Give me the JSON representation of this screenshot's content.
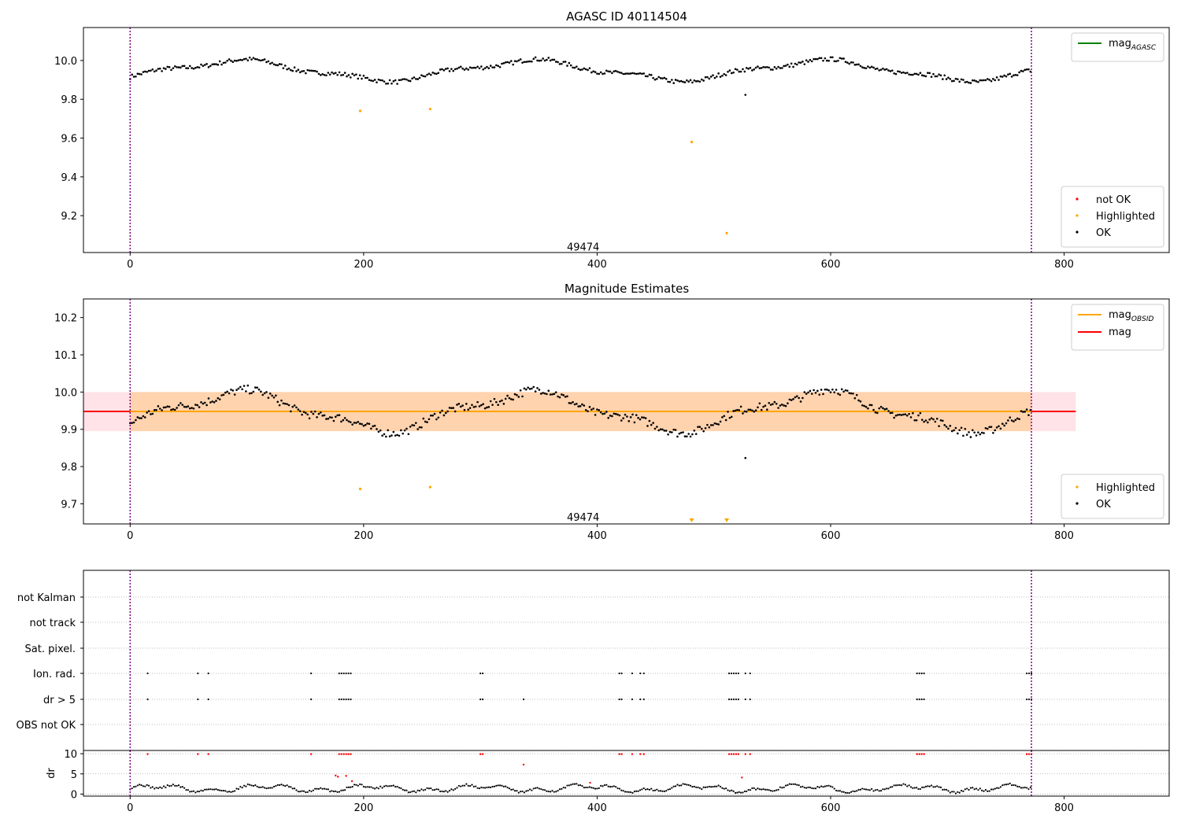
{
  "figure": {
    "chart_data": [
      {
        "type": "scatter",
        "title": "AGASC ID 40114504",
        "xlim": [
          -40,
          890
        ],
        "ylim": [
          9.01,
          10.17
        ],
        "x_ticks": [
          0,
          200,
          400,
          600,
          800
        ],
        "y_ticks": [
          9.2,
          9.4,
          9.6,
          9.8,
          10.0
        ],
        "obs_boundaries": [
          0,
          772
        ],
        "obs_label": {
          "x": 388,
          "y": 9.04,
          "text": "49474"
        },
        "lines": [],
        "series": [
          {
            "name": "not OK",
            "color": "#ff0000",
            "points": []
          },
          {
            "name": "Highlighted",
            "color": "#ffa500",
            "points": [
              [
                197,
                9.74
              ],
              [
                257,
                9.75
              ],
              [
                481,
                9.58
              ],
              [
                511,
                9.11
              ]
            ]
          },
          {
            "name": "OK",
            "color": "#000000",
            "curve": "mag",
            "from": 0,
            "to": 772,
            "step": 1.6
          }
        ],
        "legend_lines": [
          {
            "label": "mag",
            "sub": "AGASC",
            "color": "#008000"
          }
        ],
        "legend_points": [
          {
            "label": "not OK",
            "color": "#ff0000"
          },
          {
            "label": "Highlighted",
            "color": "#ffa500"
          },
          {
            "label": "OK",
            "color": "#000000"
          }
        ]
      },
      {
        "type": "scatter",
        "title": "Magnitude Estimates",
        "xlim": [
          -40,
          890
        ],
        "ylim": [
          9.646,
          10.25
        ],
        "x_ticks": [
          0,
          200,
          400,
          600,
          800
        ],
        "y_ticks": [
          9.7,
          9.8,
          9.9,
          10.0,
          10.1,
          10.2
        ],
        "obs_boundaries": [
          0,
          772
        ],
        "obs_label": {
          "x": 388,
          "y": 9.665,
          "text": "49474"
        },
        "bands": [
          {
            "x": [
              -40,
              810
            ],
            "y": [
              9.895,
              10.0
            ],
            "color": "#ffc0cb",
            "opacity": 0.45
          },
          {
            "x": [
              0,
              772
            ],
            "y": [
              9.895,
              10.0
            ],
            "color": "#ffa500",
            "opacity": 0.25
          }
        ],
        "lines": [
          {
            "name": "mag",
            "x": [
              -40,
              810
            ],
            "y": 9.948,
            "color": "#ff0000",
            "width": 2
          },
          {
            "name": "mag OBSID",
            "x": [
              0,
              772
            ],
            "y": 9.948,
            "color": "#ffa500",
            "width": 2
          }
        ],
        "series": [
          {
            "name": "Highlighted",
            "color": "#ffa500",
            "points": [
              [
                197,
                9.74
              ],
              [
                257,
                9.745
              ]
            ],
            "offscale_markers": [
              481,
              511
            ]
          },
          {
            "name": "OK",
            "color": "#000000",
            "curve": "mag",
            "from": 0,
            "to": 772,
            "step": 1.6
          }
        ],
        "legend_lines": [
          {
            "label": "mag",
            "sub": "OBSID",
            "color": "#ffa500"
          },
          {
            "label": "mag",
            "sub": "",
            "color": "#ff0000"
          }
        ],
        "legend_points": [
          {
            "label": "Highlighted",
            "color": "#ffa500"
          },
          {
            "label": "OK",
            "color": "#000000"
          }
        ]
      },
      {
        "type": "scatter",
        "title": "",
        "xlim": [
          -40,
          890
        ],
        "obs_boundaries": [
          0,
          772
        ],
        "flag_rows": [
          "not Kalman",
          "not track",
          "Sat. pixel.",
          "Ion. rad.",
          "dr > 5",
          "OBS not OK"
        ],
        "flag_points": {
          "Ion. rad.": [
            15,
            58,
            67,
            155,
            179,
            181,
            183,
            185,
            187,
            189,
            300,
            302,
            419,
            421,
            430,
            437,
            440,
            513,
            515,
            517,
            519,
            521,
            527,
            531,
            674,
            676,
            678,
            680,
            768,
            770,
            772
          ],
          "dr > 5": [
            15,
            58,
            67,
            155,
            179,
            181,
            183,
            185,
            187,
            189,
            300,
            302,
            337,
            419,
            421,
            430,
            437,
            440,
            513,
            515,
            517,
            519,
            521,
            527,
            531,
            674,
            676,
            678,
            680,
            768,
            770,
            772
          ]
        },
        "dr_panel": {
          "ylabel": "dr",
          "ylim": [
            -0.5,
            10.8
          ],
          "y_ticks": [
            0,
            5,
            10
          ],
          "ok_color": "#000000",
          "bad_color": "#ff0000",
          "bad_points": [
            [
              15,
              9.9
            ],
            [
              58,
              9.9
            ],
            [
              67,
              9.9
            ],
            [
              155,
              9.9
            ],
            [
              179,
              9.9
            ],
            [
              181,
              9.9
            ],
            [
              183,
              9.9
            ],
            [
              185,
              9.9
            ],
            [
              187,
              9.9
            ],
            [
              189,
              9.9
            ],
            [
              300,
              9.9
            ],
            [
              302,
              9.9
            ],
            [
              419,
              9.9
            ],
            [
              421,
              9.9
            ],
            [
              430,
              9.9
            ],
            [
              437,
              9.9
            ],
            [
              440,
              9.9
            ],
            [
              513,
              9.9
            ],
            [
              515,
              9.9
            ],
            [
              517,
              9.9
            ],
            [
              519,
              9.9
            ],
            [
              521,
              9.9
            ],
            [
              527,
              9.9
            ],
            [
              531,
              9.9
            ],
            [
              674,
              9.9
            ],
            [
              676,
              9.9
            ],
            [
              678,
              9.9
            ],
            [
              680,
              9.9
            ],
            [
              768,
              9.9
            ],
            [
              770,
              9.9
            ],
            [
              772,
              9.9
            ],
            [
              176,
              4.6
            ],
            [
              178,
              4.3
            ],
            [
              185,
              4.5
            ],
            [
              190,
              3.2
            ],
            [
              337,
              7.3
            ],
            [
              524,
              4.1
            ],
            [
              394,
              2.8
            ]
          ]
        }
      }
    ]
  }
}
